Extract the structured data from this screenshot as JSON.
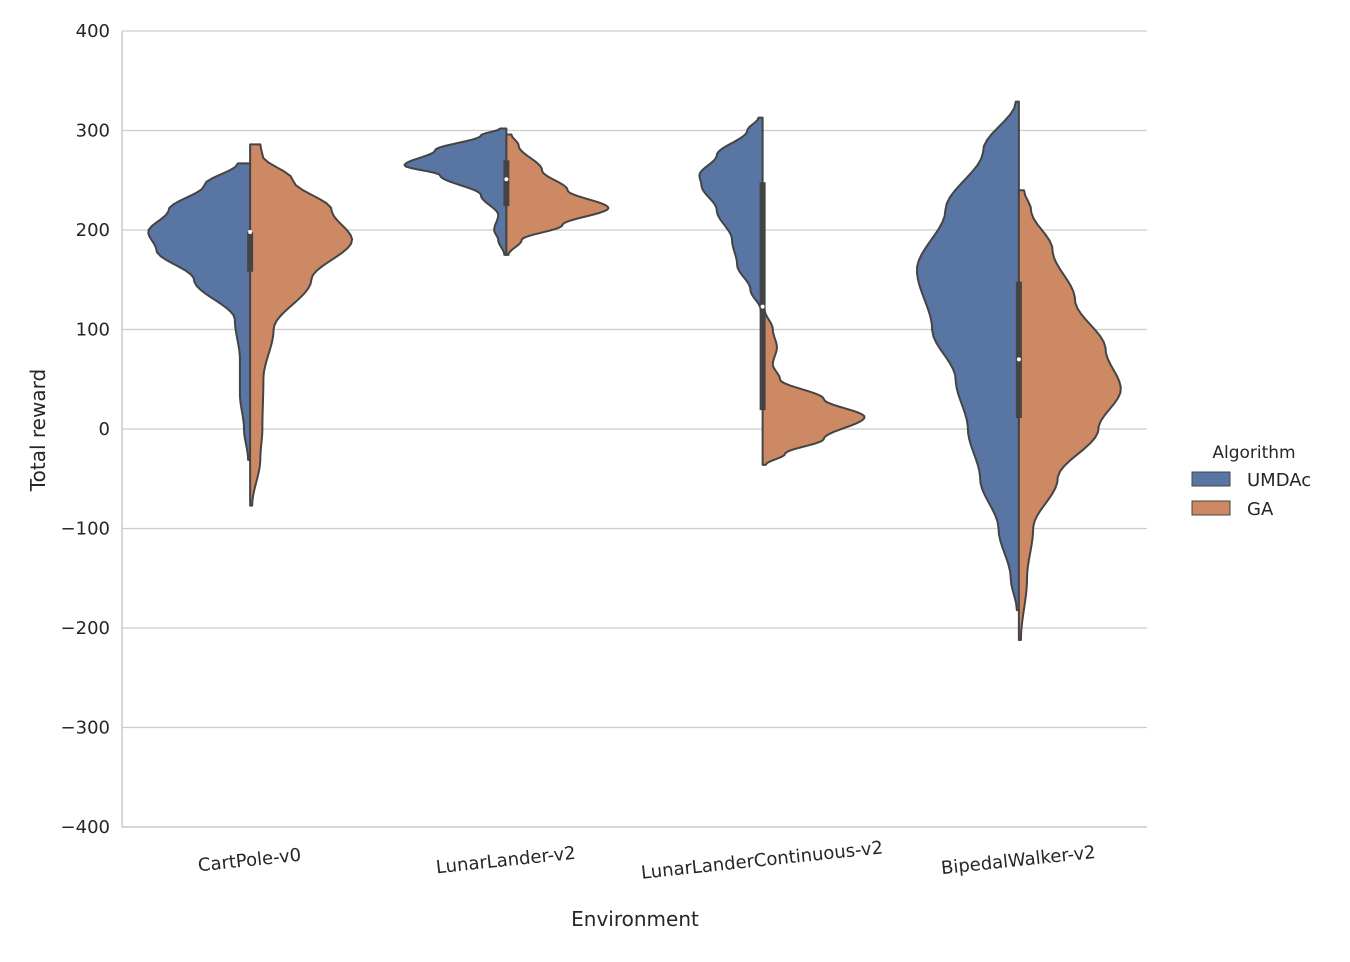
{
  "chart_data": {
    "type": "violin",
    "xlabel": "Environment",
    "ylabel": "Total reward",
    "ylim": [
      -400,
      400
    ],
    "yticks": [
      -400,
      -300,
      -200,
      -100,
      0,
      100,
      200,
      300,
      400
    ],
    "grid": "horizontal",
    "split": true,
    "legend": {
      "title": "Algorithm",
      "placement": "right"
    },
    "categories": [
      "CartPole-v0",
      "LunarLander-v2",
      "LunarLanderContinuous-v2",
      "BipedalWalker-v2"
    ],
    "series": [
      {
        "name": "UMDAc",
        "color": "#5875a4",
        "violins": [
          {
            "min": -31,
            "max": 267,
            "profile": [
              [
                -31,
                0.02
              ],
              [
                0,
                0.06
              ],
              [
                35,
                0.1
              ],
              [
                70,
                0.1
              ],
              [
                110,
                0.15
              ],
              [
                150,
                0.55
              ],
              [
                180,
                0.92
              ],
              [
                198,
                1.0
              ],
              [
                220,
                0.8
              ],
              [
                245,
                0.45
              ],
              [
                267,
                0.12
              ]
            ]
          },
          {
            "min": 175,
            "max": 302,
            "profile": [
              [
                175,
                0.02
              ],
              [
                190,
                0.08
              ],
              [
                200,
                0.12
              ],
              [
                215,
                0.08
              ],
              [
                235,
                0.25
              ],
              [
                255,
                0.65
              ],
              [
                265,
                1.0
              ],
              [
                280,
                0.7
              ],
              [
                295,
                0.25
              ],
              [
                302,
                0.06
              ]
            ]
          },
          {
            "min": 120,
            "max": 313,
            "profile": [
              [
                120,
                0.02
              ],
              [
                140,
                0.12
              ],
              [
                165,
                0.25
              ],
              [
                190,
                0.3
              ],
              [
                220,
                0.45
              ],
              [
                245,
                0.6
              ],
              [
                255,
                0.62
              ],
              [
                275,
                0.45
              ],
              [
                300,
                0.15
              ],
              [
                313,
                0.04
              ]
            ]
          },
          {
            "min": -182,
            "max": 329,
            "profile": [
              [
                -182,
                0.02
              ],
              [
                -150,
                0.08
              ],
              [
                -100,
                0.2
              ],
              [
                -50,
                0.38
              ],
              [
                0,
                0.5
              ],
              [
                50,
                0.62
              ],
              [
                100,
                0.85
              ],
              [
                160,
                1.0
              ],
              [
                220,
                0.72
              ],
              [
                280,
                0.35
              ],
              [
                329,
                0.03
              ]
            ]
          }
        ],
        "box": [
          {
            "q1": 158,
            "median": 198,
            "q3": 198
          },
          {
            "q1": 224,
            "median": 251,
            "q3": 270
          },
          {
            "q1": 19,
            "median": 123,
            "q3": 248
          },
          {
            "q1": 11,
            "median": 70,
            "q3": 148
          }
        ]
      },
      {
        "name": "GA",
        "color": "#cc8963",
        "violins": [
          {
            "min": -77,
            "max": 286,
            "profile": [
              [
                -77,
                0.02
              ],
              [
                -30,
                0.1
              ],
              [
                0,
                0.12
              ],
              [
                50,
                0.13
              ],
              [
                100,
                0.23
              ],
              [
                150,
                0.6
              ],
              [
                190,
                1.0
              ],
              [
                220,
                0.8
              ],
              [
                250,
                0.42
              ],
              [
                275,
                0.12
              ],
              [
                286,
                0.1
              ]
            ]
          },
          {
            "min": 175,
            "max": 296,
            "profile": [
              [
                175,
                0.02
              ],
              [
                190,
                0.15
              ],
              [
                205,
                0.55
              ],
              [
                222,
                1.0
              ],
              [
                240,
                0.6
              ],
              [
                260,
                0.35
              ],
              [
                285,
                0.12
              ],
              [
                296,
                0.05
              ]
            ]
          },
          {
            "min": -36,
            "max": 120,
            "profile": [
              [
                -36,
                0.03
              ],
              [
                -25,
                0.22
              ],
              [
                -10,
                0.6
              ],
              [
                12,
                1.0
              ],
              [
                30,
                0.6
              ],
              [
                50,
                0.17
              ],
              [
                65,
                0.1
              ],
              [
                82,
                0.14
              ],
              [
                100,
                0.1
              ],
              [
                120,
                0.02
              ]
            ]
          },
          {
            "min": -212,
            "max": 240,
            "profile": [
              [
                -212,
                0.02
              ],
              [
                -150,
                0.08
              ],
              [
                -100,
                0.14
              ],
              [
                -50,
                0.38
              ],
              [
                0,
                0.78
              ],
              [
                40,
                1.0
              ],
              [
                80,
                0.85
              ],
              [
                130,
                0.55
              ],
              [
                180,
                0.33
              ],
              [
                220,
                0.12
              ],
              [
                240,
                0.05
              ]
            ]
          }
        ]
      }
    ]
  }
}
